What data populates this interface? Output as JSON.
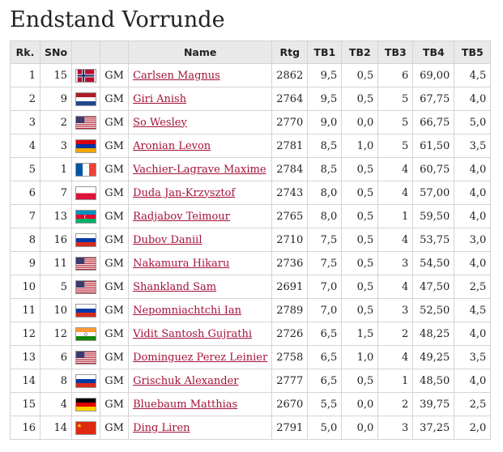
{
  "title": "Endstand Vorrunde",
  "columns": {
    "rk": "Rk.",
    "sno": "SNo",
    "fed": "",
    "title": "",
    "name": "Name",
    "rtg": "Rtg",
    "tb1": "TB1",
    "tb2": "TB2",
    "tb3": "TB3",
    "tb4": "TB4",
    "tb5": "TB5"
  },
  "rows": [
    {
      "rk": "1",
      "sno": "15",
      "flag": "norway-flag-icon",
      "ttl": "GM",
      "name": "Carlsen Magnus",
      "rtg": "2862",
      "tb1": "9,5",
      "tb2": "0,5",
      "tb3": "6",
      "tb4": "69,00",
      "tb5": "4,5"
    },
    {
      "rk": "2",
      "sno": "9",
      "flag": "netherlands-flag-icon",
      "ttl": "GM",
      "name": "Giri Anish",
      "rtg": "2764",
      "tb1": "9,5",
      "tb2": "0,5",
      "tb3": "5",
      "tb4": "67,75",
      "tb5": "4,0"
    },
    {
      "rk": "3",
      "sno": "2",
      "flag": "usa-flag-icon",
      "ttl": "GM",
      "name": "So Wesley",
      "rtg": "2770",
      "tb1": "9,0",
      "tb2": "0,0",
      "tb3": "5",
      "tb4": "66,75",
      "tb5": "5,0"
    },
    {
      "rk": "4",
      "sno": "3",
      "flag": "armenia-flag-icon",
      "ttl": "GM",
      "name": "Aronian Levon",
      "rtg": "2781",
      "tb1": "8,5",
      "tb2": "1,0",
      "tb3": "5",
      "tb4": "61,50",
      "tb5": "3,5"
    },
    {
      "rk": "5",
      "sno": "1",
      "flag": "france-flag-icon",
      "ttl": "GM",
      "name": "Vachier-Lagrave Maxime",
      "rtg": "2784",
      "tb1": "8,5",
      "tb2": "0,5",
      "tb3": "4",
      "tb4": "60,75",
      "tb5": "4,0"
    },
    {
      "rk": "6",
      "sno": "7",
      "flag": "poland-flag-icon",
      "ttl": "GM",
      "name": "Duda Jan-Krzysztof",
      "rtg": "2743",
      "tb1": "8,0",
      "tb2": "0,5",
      "tb3": "4",
      "tb4": "57,00",
      "tb5": "4,0"
    },
    {
      "rk": "7",
      "sno": "13",
      "flag": "azerbaijan-flag-icon",
      "ttl": "GM",
      "name": "Radjabov Teimour",
      "rtg": "2765",
      "tb1": "8,0",
      "tb2": "0,5",
      "tb3": "1",
      "tb4": "59,50",
      "tb5": "4,0"
    },
    {
      "rk": "8",
      "sno": "16",
      "flag": "russia-flag-icon",
      "ttl": "GM",
      "name": "Dubov Daniil",
      "rtg": "2710",
      "tb1": "7,5",
      "tb2": "0,5",
      "tb3": "4",
      "tb4": "53,75",
      "tb5": "3,0"
    },
    {
      "rk": "9",
      "sno": "11",
      "flag": "usa-flag-icon",
      "ttl": "GM",
      "name": "Nakamura Hikaru",
      "rtg": "2736",
      "tb1": "7,5",
      "tb2": "0,5",
      "tb3": "3",
      "tb4": "54,50",
      "tb5": "4,0"
    },
    {
      "rk": "10",
      "sno": "5",
      "flag": "usa-flag-icon",
      "ttl": "GM",
      "name": "Shankland Sam",
      "rtg": "2691",
      "tb1": "7,0",
      "tb2": "0,5",
      "tb3": "4",
      "tb4": "47,50",
      "tb5": "2,5"
    },
    {
      "rk": "11",
      "sno": "10",
      "flag": "russia-flag-icon",
      "ttl": "GM",
      "name": "Nepomniachtchi Ian",
      "rtg": "2789",
      "tb1": "7,0",
      "tb2": "0,5",
      "tb3": "3",
      "tb4": "52,50",
      "tb5": "4,5"
    },
    {
      "rk": "12",
      "sno": "12",
      "flag": "india-flag-icon",
      "ttl": "GM",
      "name": "Vidit Santosh Gujrathi",
      "rtg": "2726",
      "tb1": "6,5",
      "tb2": "1,5",
      "tb3": "2",
      "tb4": "48,25",
      "tb5": "4,0"
    },
    {
      "rk": "13",
      "sno": "6",
      "flag": "usa-flag-icon",
      "ttl": "GM",
      "name": "Dominguez Perez Leinier",
      "rtg": "2758",
      "tb1": "6,5",
      "tb2": "1,0",
      "tb3": "4",
      "tb4": "49,25",
      "tb5": "3,5"
    },
    {
      "rk": "14",
      "sno": "8",
      "flag": "russia-flag-icon",
      "ttl": "GM",
      "name": "Grischuk Alexander",
      "rtg": "2777",
      "tb1": "6,5",
      "tb2": "0,5",
      "tb3": "1",
      "tb4": "48,50",
      "tb5": "4,0"
    },
    {
      "rk": "15",
      "sno": "4",
      "flag": "germany-flag-icon",
      "ttl": "GM",
      "name": "Bluebaum Matthias",
      "rtg": "2670",
      "tb1": "5,5",
      "tb2": "0,0",
      "tb3": "2",
      "tb4": "39,75",
      "tb5": "2,5"
    },
    {
      "rk": "16",
      "sno": "14",
      "flag": "china-flag-icon",
      "ttl": "GM",
      "name": "Ding Liren",
      "rtg": "2791",
      "tb1": "5,0",
      "tb2": "0,0",
      "tb3": "3",
      "tb4": "37,25",
      "tb5": "2,0"
    }
  ]
}
